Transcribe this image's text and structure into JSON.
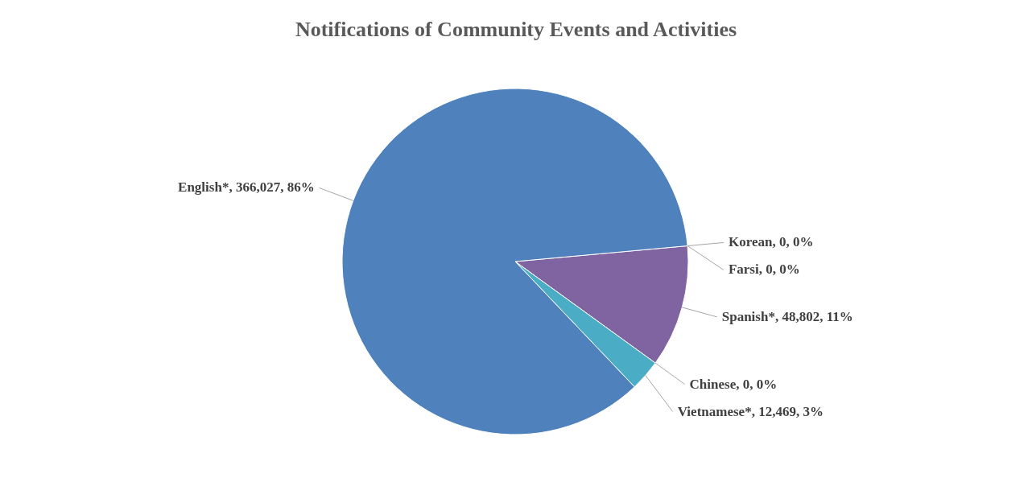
{
  "chart_data": {
    "type": "pie",
    "title": "Notifications of Community Events and Activities",
    "categories": [
      "Korean",
      "Farsi",
      "Spanish*",
      "Chinese",
      "Vietnamese*",
      "English*"
    ],
    "values": [
      0,
      0,
      48802,
      0,
      12469,
      366027
    ],
    "value_labels": [
      ", 0, 0%",
      ", 0, 0%",
      ", 48,802, 11%",
      ", 0, 0%",
      ", 12,469, 3%",
      ", 366,027, 86%"
    ],
    "colors": [
      "#f79646",
      "#9bbb59",
      "#8064a2",
      "#c0504d",
      "#4bacc6",
      "#4f81bd"
    ]
  }
}
